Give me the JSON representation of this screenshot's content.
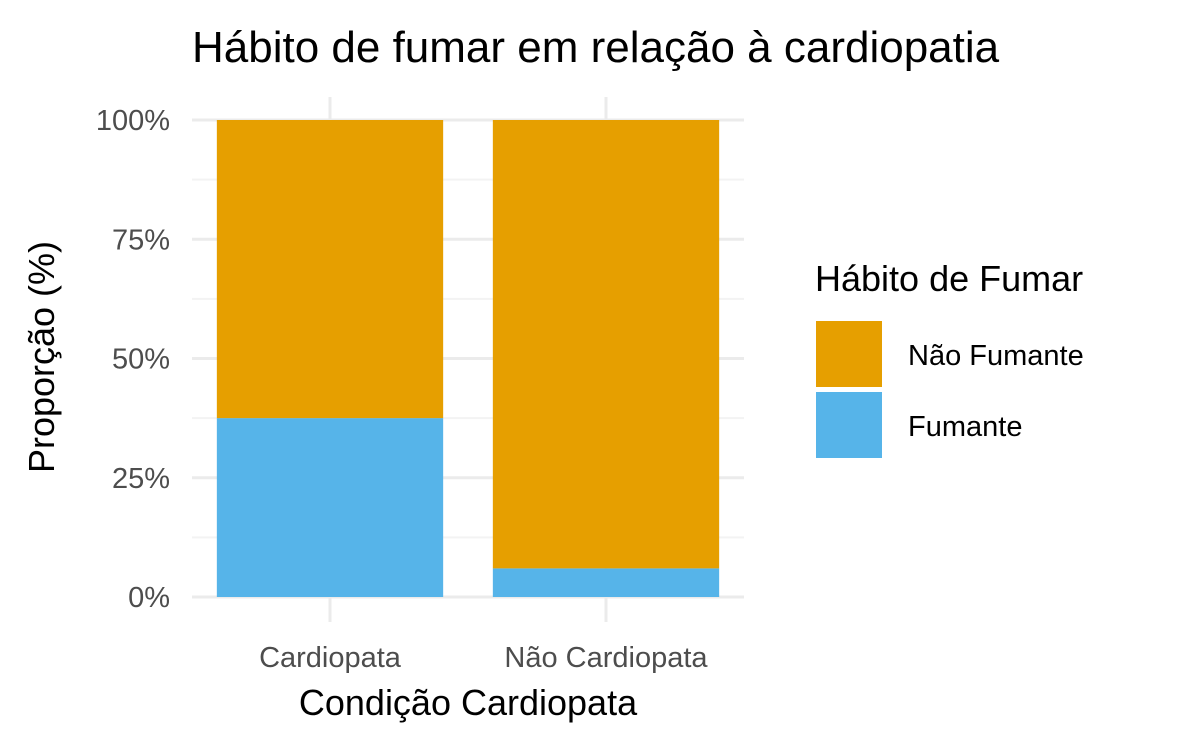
{
  "chart_data": {
    "type": "bar",
    "stacked": true,
    "title": "Hábito de fumar em relação à cardiopatia",
    "xlabel": "Condição Cardiopata",
    "ylabel": "Proporção (%)",
    "categories": [
      "Cardiopata",
      "Não Cardiopata"
    ],
    "series": [
      {
        "name": "Não Fumante",
        "values": [
          62.5,
          94
        ],
        "color": "#E69F00"
      },
      {
        "name": "Fumante",
        "values": [
          37.5,
          6
        ],
        "color": "#56B4E9"
      }
    ],
    "stack_order": [
      "Fumante",
      "Não Fumante"
    ],
    "ylim": [
      0,
      100
    ],
    "yticks": [
      0,
      25,
      50,
      75,
      100
    ],
    "ytick_labels": [
      "0%",
      "25%",
      "50%",
      "75%",
      "100%"
    ],
    "grid": true,
    "legend": {
      "title": "Hábito de Fumar",
      "position": "right",
      "order": [
        "Não Fumante",
        "Fumante"
      ]
    }
  }
}
